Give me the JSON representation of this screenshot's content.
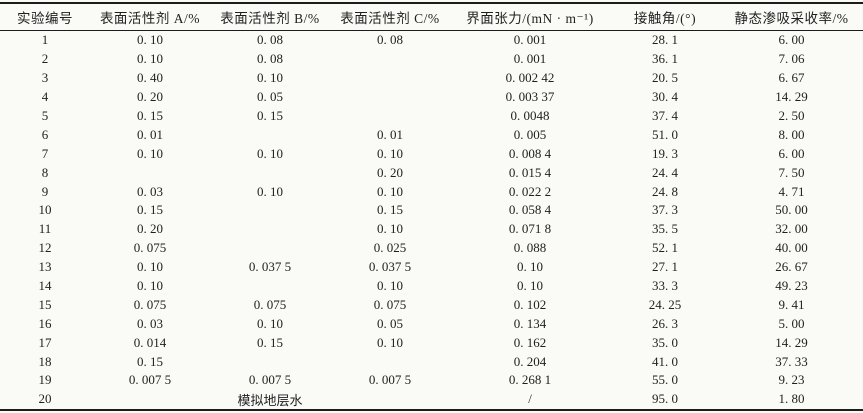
{
  "table": {
    "columns": [
      "实验编号",
      "表面活性剂 A/%",
      "表面活性剂 B/%",
      "表面活性剂 C/%",
      "界面张力/(mN · m⁻¹)",
      "接触角/(°)",
      "静态渗吸采收率/%"
    ],
    "rows": [
      {
        "cells": [
          "1",
          "0. 10",
          "0. 08",
          "0. 08",
          "0. 001",
          "28. 1",
          "6. 00"
        ]
      },
      {
        "cells": [
          "2",
          "0. 10",
          "0. 08",
          "",
          "0. 001",
          "36. 1",
          "7. 06"
        ]
      },
      {
        "cells": [
          "3",
          "0. 40",
          "0. 10",
          "",
          "0. 002 42",
          "20. 5",
          "6. 67"
        ]
      },
      {
        "cells": [
          "4",
          "0. 20",
          "0. 05",
          "",
          "0. 003 37",
          "30. 4",
          "14. 29"
        ]
      },
      {
        "cells": [
          "5",
          "0. 15",
          "0. 15",
          "",
          "0. 0048",
          "37. 4",
          "2. 50"
        ]
      },
      {
        "cells": [
          "6",
          "0. 01",
          "",
          "0. 01",
          "0. 005",
          "51. 0",
          "8. 00"
        ]
      },
      {
        "cells": [
          "7",
          "0. 10",
          "0. 10",
          "0. 10",
          "0. 008 4",
          "19. 3",
          "6. 00"
        ]
      },
      {
        "cells": [
          "8",
          "",
          "",
          "0. 20",
          "0. 015 4",
          "24. 4",
          "7. 50"
        ]
      },
      {
        "cells": [
          "9",
          "0. 03",
          "0. 10",
          "0. 10",
          "0. 022 2",
          "24. 8",
          "4. 71"
        ]
      },
      {
        "cells": [
          "10",
          "0. 15",
          "",
          "0. 15",
          "0. 058 4",
          "37. 3",
          "50. 00"
        ]
      },
      {
        "cells": [
          "11",
          "0. 20",
          "",
          "0. 10",
          "0. 071 8",
          "35. 5",
          "32. 00"
        ]
      },
      {
        "cells": [
          "12",
          "0. 075",
          "",
          "0. 025",
          "0. 088",
          "52. 1",
          "40. 00"
        ]
      },
      {
        "cells": [
          "13",
          "0. 10",
          "0. 037 5",
          "0. 037 5",
          "0. 10",
          "27. 1",
          "26. 67"
        ]
      },
      {
        "cells": [
          "14",
          "0. 10",
          "",
          "0. 10",
          "0. 10",
          "33. 3",
          "49. 23"
        ]
      },
      {
        "cells": [
          "15",
          "0. 075",
          "0. 075",
          "0. 075",
          "0. 102",
          "24. 25",
          "9. 41"
        ]
      },
      {
        "cells": [
          "16",
          "0. 03",
          "0. 10",
          "0. 05",
          "0. 134",
          "26. 3",
          "5. 00"
        ]
      },
      {
        "cells": [
          "17",
          "0. 014",
          "0. 15",
          "0. 10",
          "0. 162",
          "35. 0",
          "14. 29"
        ]
      },
      {
        "cells": [
          "18",
          "0. 15",
          "",
          "",
          "0. 204",
          "41. 0",
          "37. 33"
        ]
      },
      {
        "cells": [
          "19",
          "0. 007 5",
          "0. 007 5",
          "0. 007 5",
          "0. 268 1",
          "55. 0",
          "9. 23"
        ]
      },
      {
        "cells": [
          "20",
          {
            "text": "模拟地层水",
            "colspan": 3
          },
          "/",
          "95. 0",
          "1. 80"
        ]
      }
    ]
  },
  "colors": {
    "page_background": "#fafaf7",
    "text": "#1f1f1f",
    "rule": "#1c1c1c"
  }
}
